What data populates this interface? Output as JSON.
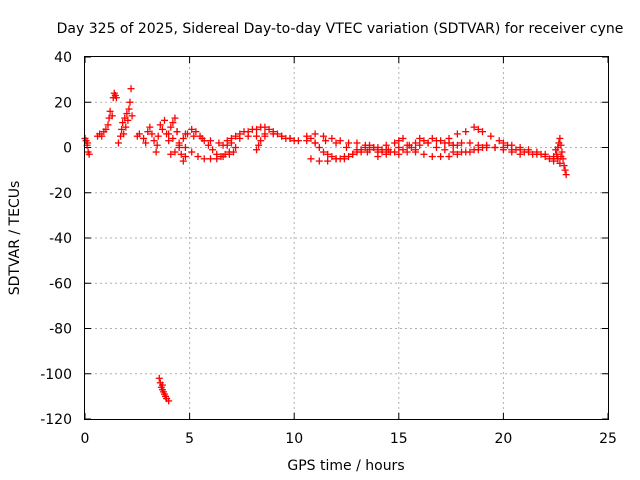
{
  "chart_data": {
    "type": "scatter",
    "title": "Day 325 of 2025, Sidereal Day-to-day VTEC variation (SDTVAR) for receiver cyne",
    "xlabel": "GPS time / hours",
    "ylabel": "SDTVAR / TECUs",
    "xlim": [
      0,
      25
    ],
    "ylim": [
      -120,
      40
    ],
    "xticks": [
      "0",
      "5",
      "10",
      "15",
      "20",
      "25"
    ],
    "yticks": [
      "-120",
      "-100",
      "-80",
      "-60",
      "-40",
      "-20",
      "0",
      "20",
      "40"
    ],
    "grid": true,
    "marker": "+",
    "color": "#ff0000",
    "series": [
      {
        "name": "SDTVAR",
        "points": [
          [
            0.0,
            4
          ],
          [
            0.05,
            3
          ],
          [
            0.1,
            1
          ],
          [
            0.15,
            -2
          ],
          [
            0.2,
            -3
          ],
          [
            0.12,
            2
          ],
          [
            0.6,
            5
          ],
          [
            0.7,
            6
          ],
          [
            0.8,
            5
          ],
          [
            0.9,
            7
          ],
          [
            1.0,
            8
          ],
          [
            1.1,
            10
          ],
          [
            1.15,
            13
          ],
          [
            1.2,
            16
          ],
          [
            1.3,
            14
          ],
          [
            1.35,
            22
          ],
          [
            1.4,
            24
          ],
          [
            1.45,
            23
          ],
          [
            1.5,
            22
          ],
          [
            1.6,
            2
          ],
          [
            1.7,
            5
          ],
          [
            1.75,
            8
          ],
          [
            1.8,
            11
          ],
          [
            1.9,
            13
          ],
          [
            2.0,
            15
          ],
          [
            2.05,
            12
          ],
          [
            2.1,
            17
          ],
          [
            2.15,
            20
          ],
          [
            2.2,
            26
          ],
          [
            2.25,
            14
          ],
          [
            1.95,
            9
          ],
          [
            1.85,
            6
          ],
          [
            2.5,
            5
          ],
          [
            2.6,
            6
          ],
          [
            2.8,
            4
          ],
          [
            2.9,
            2
          ],
          [
            3.0,
            7
          ],
          [
            3.1,
            9
          ],
          [
            3.2,
            6
          ],
          [
            3.3,
            3
          ],
          [
            3.4,
            -2
          ],
          [
            3.45,
            1
          ],
          [
            3.5,
            5
          ],
          [
            3.6,
            10
          ],
          [
            3.7,
            8
          ],
          [
            3.8,
            12
          ],
          [
            3.9,
            6
          ],
          [
            4.0,
            3
          ],
          [
            4.1,
            9
          ],
          [
            4.2,
            11
          ],
          [
            4.3,
            13
          ],
          [
            4.4,
            7
          ],
          [
            4.5,
            0
          ],
          [
            4.6,
            -3
          ],
          [
            4.7,
            -6
          ],
          [
            4.8,
            -4
          ],
          [
            3.55,
            -102
          ],
          [
            3.6,
            -104
          ],
          [
            3.65,
            -106
          ],
          [
            3.7,
            -107
          ],
          [
            3.75,
            -108
          ],
          [
            3.8,
            -109
          ],
          [
            3.85,
            -110
          ],
          [
            3.9,
            -111
          ],
          [
            4.0,
            -112
          ],
          [
            3.7,
            -105
          ],
          [
            4.1,
            -3
          ],
          [
            4.3,
            -2
          ],
          [
            4.5,
            1
          ],
          [
            4.7,
            4
          ],
          [
            4.9,
            6
          ],
          [
            5.1,
            8
          ],
          [
            5.3,
            7
          ],
          [
            5.5,
            5
          ],
          [
            5.7,
            3
          ],
          [
            5.9,
            1
          ],
          [
            6.1,
            -1
          ],
          [
            6.3,
            -3
          ],
          [
            6.5,
            -4
          ],
          [
            6.7,
            -3
          ],
          [
            6.9,
            -2
          ],
          [
            4.2,
            4
          ],
          [
            4.5,
            2
          ],
          [
            4.8,
            0
          ],
          [
            5.1,
            -2
          ],
          [
            5.4,
            -4
          ],
          [
            5.7,
            -5
          ],
          [
            6.0,
            -5
          ],
          [
            6.3,
            -5
          ],
          [
            6.6,
            -4
          ],
          [
            6.9,
            -3
          ],
          [
            7.1,
            -2
          ],
          [
            4.0,
            6
          ],
          [
            4.4,
            7
          ],
          [
            4.8,
            6
          ],
          [
            5.2,
            5
          ],
          [
            5.6,
            4
          ],
          [
            6.0,
            3
          ],
          [
            6.4,
            2
          ],
          [
            6.8,
            1
          ],
          [
            7.2,
            0
          ],
          [
            6.6,
            1
          ],
          [
            6.8,
            3
          ],
          [
            7.0,
            4
          ],
          [
            7.2,
            5
          ],
          [
            7.4,
            6
          ],
          [
            7.6,
            7
          ],
          [
            7.8,
            7
          ],
          [
            8.0,
            8
          ],
          [
            8.2,
            8
          ],
          [
            8.4,
            9
          ],
          [
            8.6,
            9
          ],
          [
            8.8,
            8
          ],
          [
            9.0,
            7
          ],
          [
            9.2,
            6
          ],
          [
            9.4,
            5
          ],
          [
            9.6,
            4
          ],
          [
            9.8,
            4
          ],
          [
            10.0,
            3
          ],
          [
            7.0,
            2
          ],
          [
            7.4,
            4
          ],
          [
            7.8,
            5
          ],
          [
            8.2,
            5
          ],
          [
            8.6,
            6
          ],
          [
            9.0,
            6
          ],
          [
            9.4,
            5
          ],
          [
            9.8,
            4
          ],
          [
            10.2,
            3
          ],
          [
            10.6,
            3
          ],
          [
            11.0,
            2
          ],
          [
            8.2,
            -1
          ],
          [
            8.3,
            1
          ],
          [
            8.4,
            3
          ],
          [
            8.6,
            5
          ],
          [
            10.6,
            5
          ],
          [
            10.8,
            4
          ],
          [
            11.0,
            2
          ],
          [
            11.2,
            0
          ],
          [
            11.4,
            -2
          ],
          [
            11.6,
            -3
          ],
          [
            11.8,
            -4
          ],
          [
            12.0,
            -5
          ],
          [
            12.2,
            -5
          ],
          [
            12.4,
            -5
          ],
          [
            12.6,
            -4
          ],
          [
            12.8,
            -3
          ],
          [
            13.0,
            -2
          ],
          [
            13.2,
            -1
          ],
          [
            13.4,
            0
          ],
          [
            13.6,
            1
          ],
          [
            13.8,
            0
          ],
          [
            14.0,
            -1
          ],
          [
            14.2,
            -2
          ],
          [
            14.4,
            -1
          ],
          [
            10.8,
            -5
          ],
          [
            11.2,
            -6
          ],
          [
            11.6,
            -6
          ],
          [
            12.0,
            -5
          ],
          [
            12.4,
            -4
          ],
          [
            12.8,
            -3
          ],
          [
            13.2,
            -2
          ],
          [
            13.6,
            -1
          ],
          [
            14.0,
            0
          ],
          [
            14.4,
            1
          ],
          [
            14.8,
            2
          ],
          [
            15.0,
            3
          ],
          [
            15.2,
            4
          ],
          [
            11.0,
            6
          ],
          [
            11.4,
            5
          ],
          [
            11.8,
            4
          ],
          [
            12.2,
            3
          ],
          [
            12.6,
            2
          ],
          [
            13.0,
            2
          ],
          [
            13.4,
            1
          ],
          [
            13.8,
            0
          ],
          [
            14.2,
            -1
          ],
          [
            14.6,
            -2
          ],
          [
            15.0,
            -3
          ],
          [
            15.4,
            -2
          ],
          [
            15.8,
            -1
          ],
          [
            11.5,
            3
          ],
          [
            12.0,
            2
          ],
          [
            12.5,
            0
          ],
          [
            13.0,
            -1
          ],
          [
            13.5,
            -2
          ],
          [
            14.0,
            -2
          ],
          [
            14.5,
            -1
          ],
          [
            15.0,
            0
          ],
          [
            15.5,
            1
          ],
          [
            14.0,
            -4
          ],
          [
            14.4,
            -3
          ],
          [
            14.8,
            -2
          ],
          [
            15.2,
            -1
          ],
          [
            15.6,
            0
          ],
          [
            16.0,
            1
          ],
          [
            16.4,
            2
          ],
          [
            16.8,
            3
          ],
          [
            17.2,
            2
          ],
          [
            17.6,
            1
          ],
          [
            15.4,
            1
          ],
          [
            15.8,
            2
          ],
          [
            16.2,
            3
          ],
          [
            16.6,
            4
          ],
          [
            17.0,
            3
          ],
          [
            17.4,
            2
          ],
          [
            17.8,
            1
          ],
          [
            15.8,
            -2
          ],
          [
            16.2,
            -3
          ],
          [
            16.6,
            -4
          ],
          [
            17.0,
            -4
          ],
          [
            17.4,
            -4
          ],
          [
            17.8,
            -3
          ],
          [
            18.2,
            -2
          ],
          [
            18.6,
            -1
          ],
          [
            19.0,
            0
          ],
          [
            16.0,
            4
          ],
          [
            16.4,
            2
          ],
          [
            16.8,
            0
          ],
          [
            17.2,
            -1
          ],
          [
            17.6,
            -2
          ],
          [
            18.0,
            -2
          ],
          [
            18.4,
            -2
          ],
          [
            18.8,
            -1
          ],
          [
            19.2,
            0
          ],
          [
            19.6,
            0
          ],
          [
            20.0,
            -1
          ],
          [
            20.4,
            -2
          ],
          [
            20.8,
            -3
          ],
          [
            17.4,
            4
          ],
          [
            17.8,
            6
          ],
          [
            18.2,
            7
          ],
          [
            18.6,
            9
          ],
          [
            18.8,
            8
          ],
          [
            19.0,
            7
          ],
          [
            19.4,
            5
          ],
          [
            19.8,
            3
          ],
          [
            20.2,
            1
          ],
          [
            20.6,
            -1
          ],
          [
            21.0,
            -2
          ],
          [
            21.4,
            -3
          ],
          [
            21.8,
            -3
          ],
          [
            17.6,
            1
          ],
          [
            18.0,
            2
          ],
          [
            18.4,
            2
          ],
          [
            18.8,
            1
          ],
          [
            19.2,
            1
          ],
          [
            19.6,
            0
          ],
          [
            20.0,
            0
          ],
          [
            20.4,
            -1
          ],
          [
            20.8,
            -1
          ],
          [
            21.2,
            -2
          ],
          [
            21.6,
            -3
          ],
          [
            22.0,
            -4
          ],
          [
            22.4,
            -5
          ],
          [
            20.0,
            2
          ],
          [
            20.4,
            1
          ],
          [
            20.8,
            0
          ],
          [
            21.2,
            -1
          ],
          [
            21.6,
            -2
          ],
          [
            22.0,
            -3
          ],
          [
            22.4,
            -4
          ],
          [
            22.6,
            -5
          ],
          [
            22.2,
            -5
          ],
          [
            22.4,
            -6
          ],
          [
            22.6,
            -5
          ],
          [
            22.7,
            -7
          ],
          [
            22.75,
            -4
          ],
          [
            22.6,
            0
          ],
          [
            22.65,
            2
          ],
          [
            22.7,
            4
          ],
          [
            22.75,
            1
          ],
          [
            22.8,
            -2
          ],
          [
            22.85,
            -5
          ],
          [
            22.9,
            -8
          ],
          [
            22.95,
            -10
          ],
          [
            23.0,
            -12
          ],
          [
            22.55,
            -3
          ],
          [
            22.5,
            -1
          ]
        ]
      }
    ]
  }
}
